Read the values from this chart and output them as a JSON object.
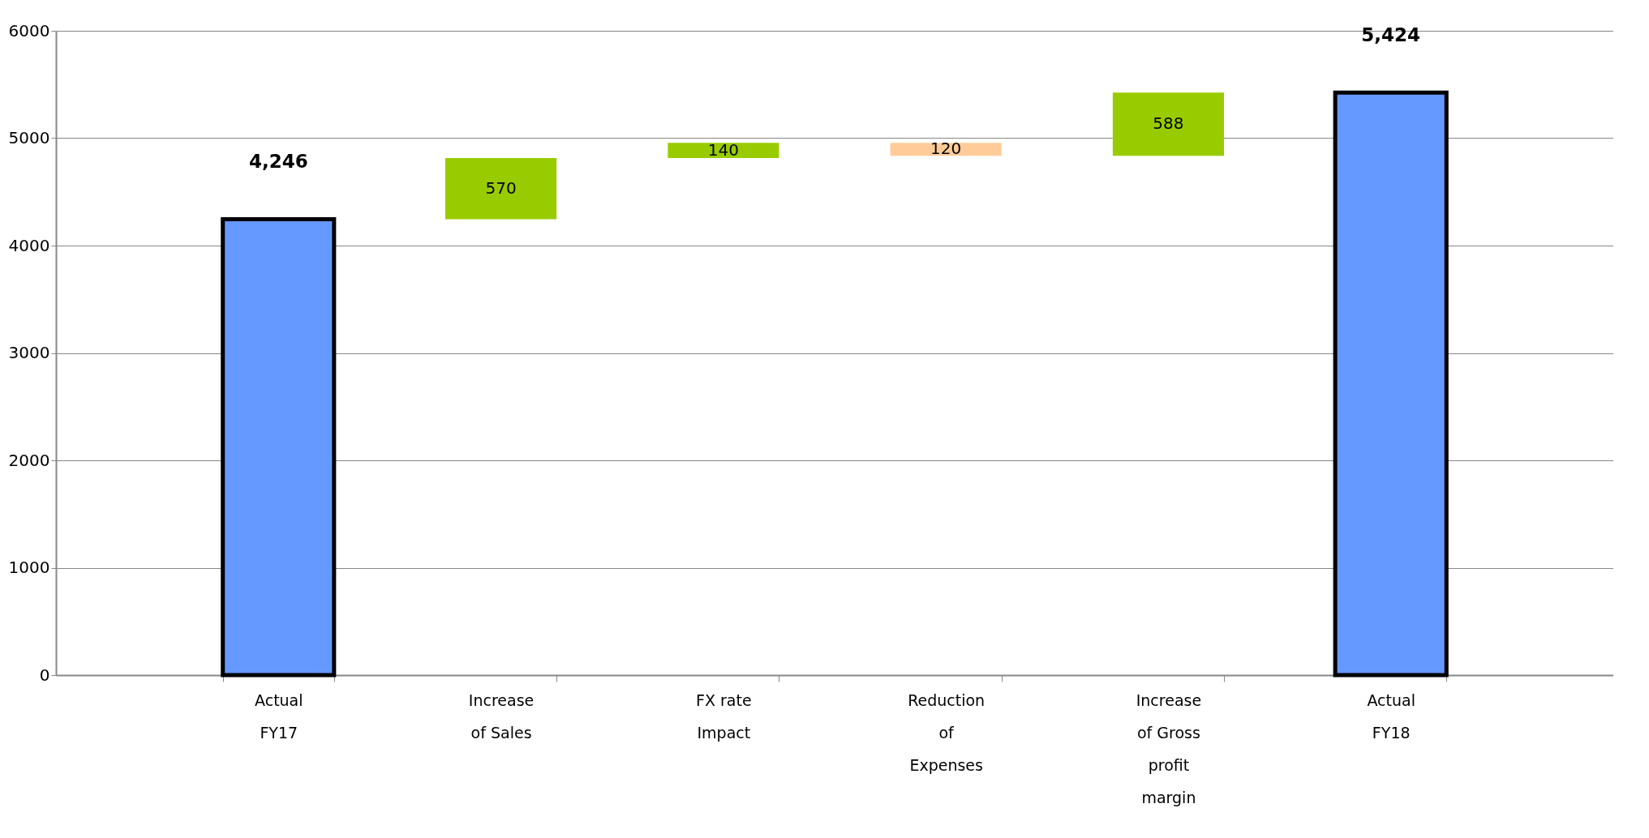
{
  "chart_data": {
    "type": "bar",
    "categories": [
      "Actual FY17",
      "Increase of Sales",
      "FX rate Impact",
      "Reduction of Expenses",
      "Increase of Gross profit margin",
      "Actual FY18"
    ],
    "values": [
      4246,
      570,
      140,
      -120,
      588,
      5424
    ],
    "base": [
      0,
      4246,
      4816,
      4956,
      4836,
      0
    ],
    "colors": [
      "#6699ff",
      "#99cc00",
      "#99cc00",
      "#ffcc99",
      "#99cc00",
      "#6699ff"
    ],
    "value_labels": [
      "4,246",
      "570",
      "140",
      "120",
      "588",
      "5,424"
    ],
    "ylim": [
      0,
      6000
    ],
    "yticks": [
      0,
      1000,
      2000,
      3000,
      4000,
      5000,
      6000
    ],
    "grid": "y"
  }
}
